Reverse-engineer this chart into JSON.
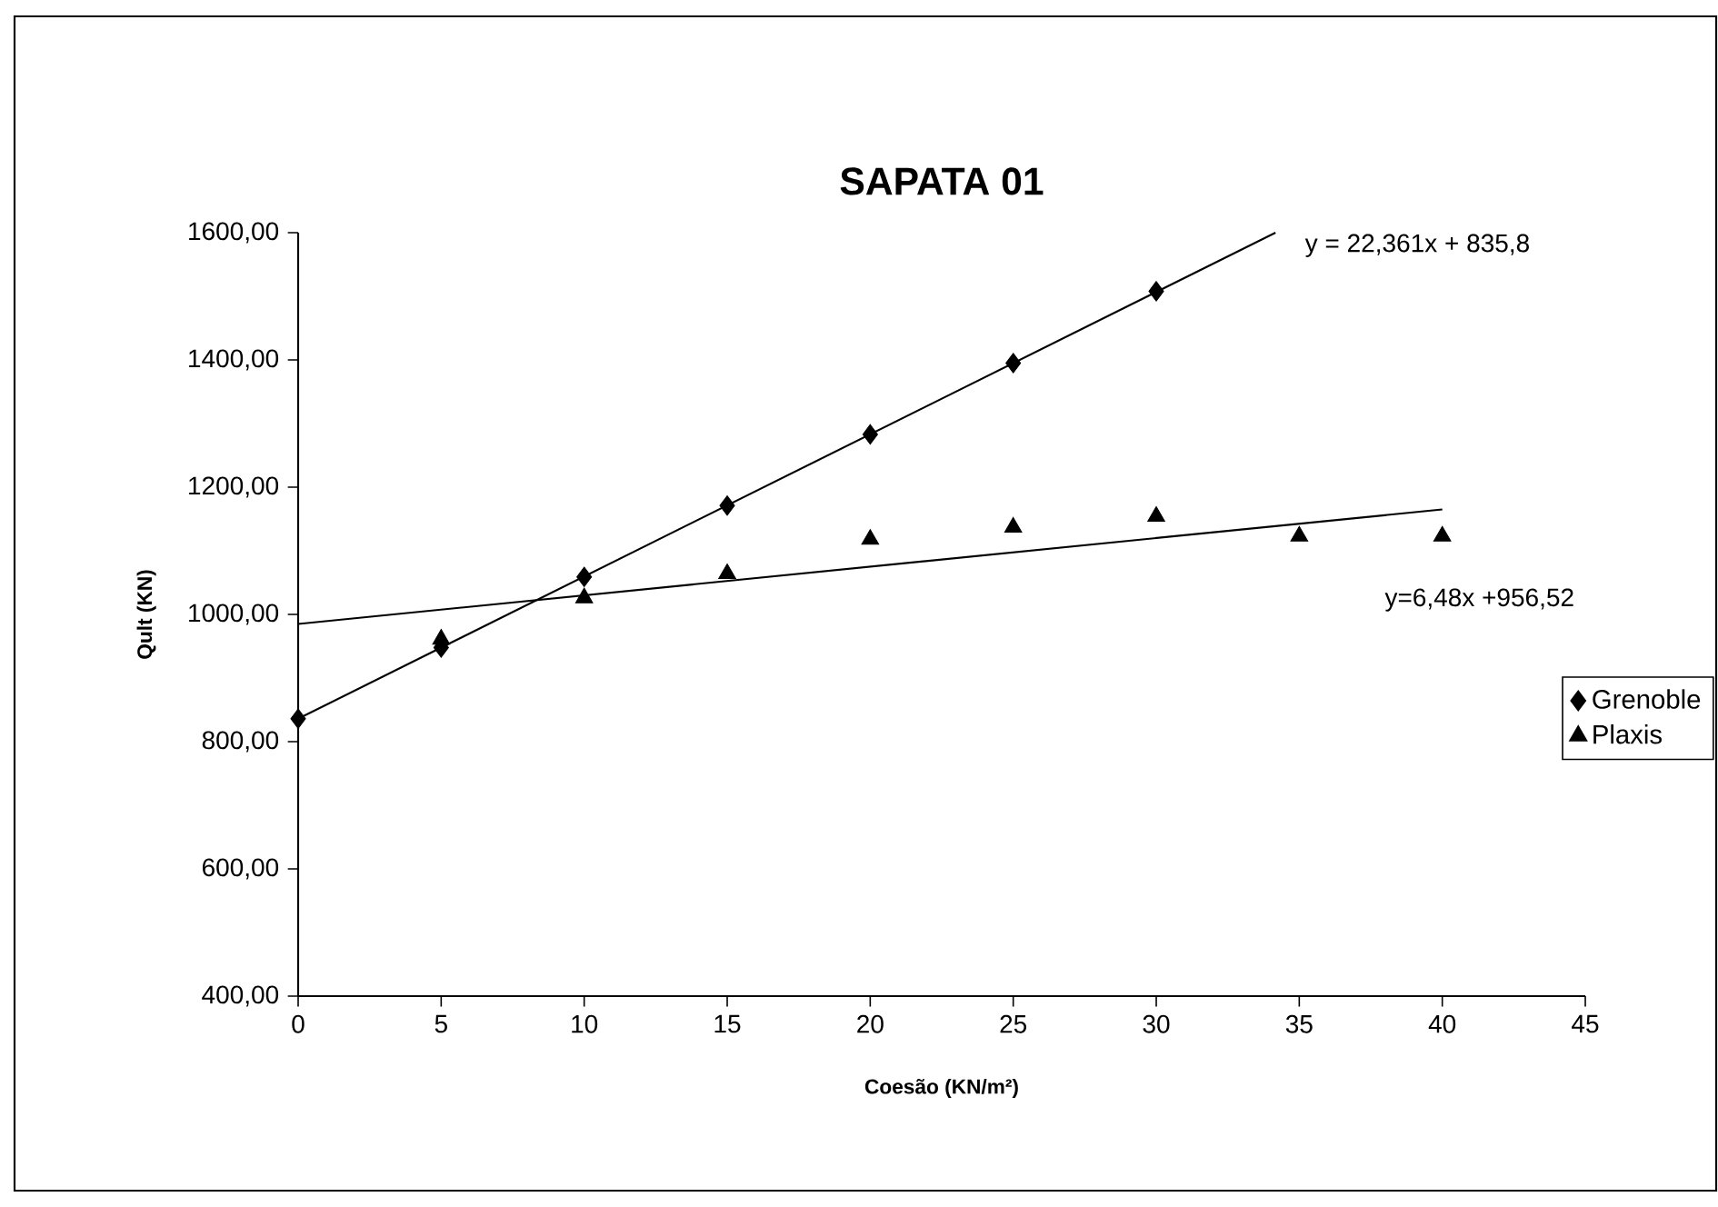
{
  "chart_data": {
    "type": "scatter",
    "title": "SAPATA 01",
    "xlabel": "Coesão (KN/m²)",
    "ylabel": "Qult (KN)",
    "xlim": [
      0,
      45
    ],
    "xticks": [
      0,
      5,
      10,
      15,
      20,
      25,
      30,
      35,
      40,
      45
    ],
    "ylim": [
      400,
      1600
    ],
    "yticks": [
      {
        "value": 400,
        "label": "400,00"
      },
      {
        "value": 600,
        "label": "600,00"
      },
      {
        "value": 800,
        "label": "800,00"
      },
      {
        "value": 1000,
        "label": "1000,00"
      },
      {
        "value": 1200,
        "label": "1200,00"
      },
      {
        "value": 1400,
        "label": "1400,00"
      },
      {
        "value": 1600,
        "label": "1600,00"
      }
    ],
    "legend": "right",
    "series": [
      {
        "name": "Grenoble",
        "type": "scatter",
        "marker": "diamond",
        "color": "#000000",
        "x": [
          0,
          5,
          10,
          15,
          20,
          25,
          30
        ],
        "values": [
          836,
          948,
          1059,
          1171,
          1283,
          1395,
          1508
        ]
      },
      {
        "name": "Plaxis",
        "type": "scatter",
        "marker": "triangle",
        "color": "#000000",
        "x": [
          5,
          10,
          15,
          20,
          25,
          30,
          35,
          40
        ],
        "values": [
          961,
          1026,
          1064,
          1118,
          1137,
          1154,
          1123,
          1123
        ]
      },
      {
        "type": "line",
        "marker": "none",
        "line_style": "solid",
        "color": "#000000",
        "x": [
          0,
          34.17
        ],
        "values": [
          836,
          1600
        ]
      },
      {
        "type": "line",
        "marker": "none",
        "line_style": "solid",
        "color": "#000000",
        "x": [
          0,
          40
        ],
        "values": [
          985,
          1165
        ]
      }
    ],
    "annotations": [
      "y = 22,361x + 835,8",
      "y=6,48x +956,52"
    ]
  }
}
